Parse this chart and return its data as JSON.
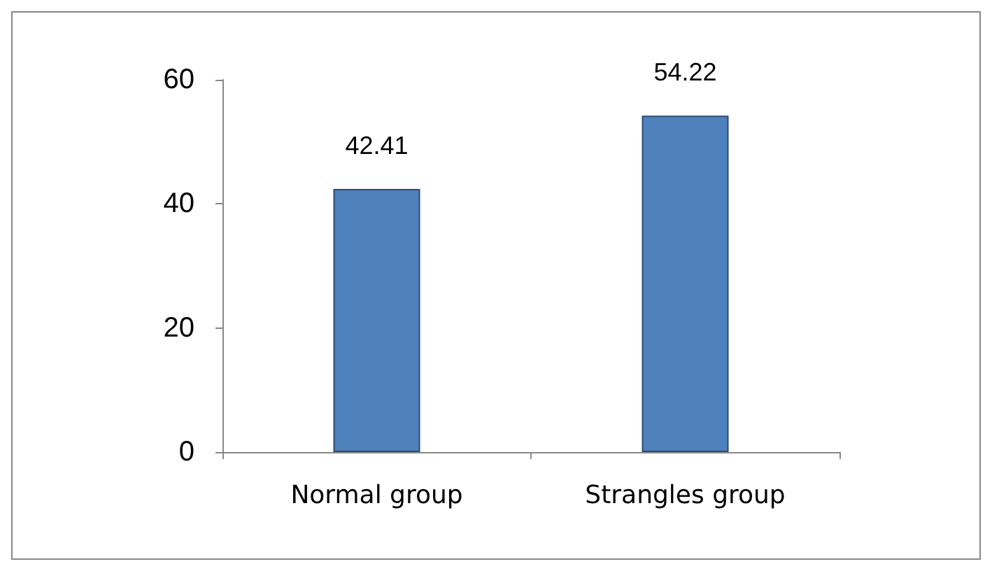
{
  "chart_data": {
    "type": "bar",
    "categories": [
      "Normal group",
      "Strangles group"
    ],
    "values": [
      42.41,
      54.22
    ],
    "color": "#4f81bd",
    "ylim": [
      0,
      60
    ],
    "yticks": [
      0,
      20,
      40,
      60
    ],
    "grid": false,
    "data_labels": true
  }
}
